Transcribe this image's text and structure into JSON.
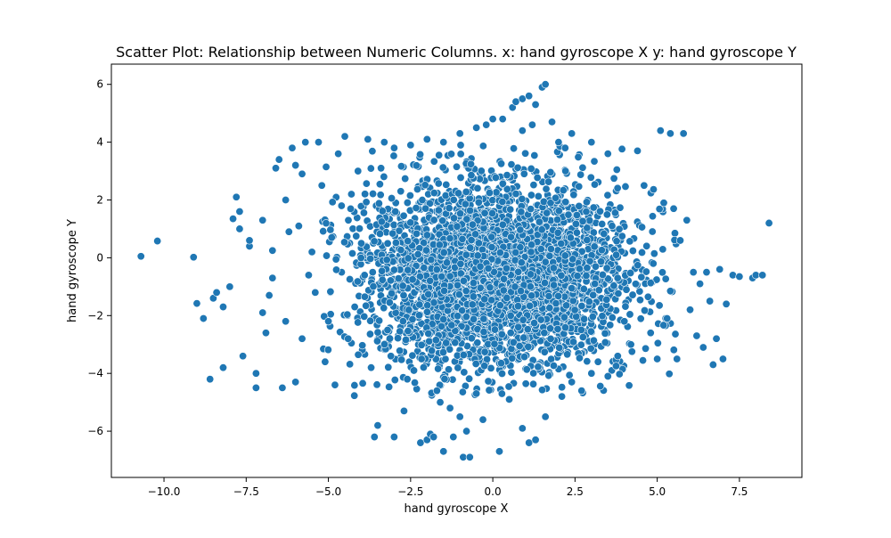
{
  "chart_data": {
    "type": "scatter",
    "title": "Scatter Plot: Relationship between Numeric Columns. x: hand gyroscope X y: hand gyroscope Y",
    "xlabel": "hand gyroscope X",
    "ylabel": "hand gyroscope Y",
    "xlim": [
      -11.6,
      9.4
    ],
    "ylim": [
      -7.6,
      6.7
    ],
    "xticks": [
      -10.0,
      -7.5,
      -5.0,
      -2.5,
      0.0,
      2.5,
      5.0,
      7.5
    ],
    "xtick_labels": [
      "−10.0",
      "−7.5",
      "−5.0",
      "−2.5",
      "0.0",
      "2.5",
      "5.0",
      "7.5"
    ],
    "yticks": [
      -6,
      -4,
      -2,
      0,
      2,
      4,
      6
    ],
    "ytick_labels": [
      "−6",
      "−4",
      "−2",
      "0",
      "2",
      "4",
      "6"
    ],
    "grid": false,
    "marker_color": "#1f77b4",
    "marker_edge": "#ffffff",
    "points": [
      [
        -10.7,
        0.05
      ],
      [
        -10.2,
        0.58
      ],
      [
        -9.1,
        0.02
      ],
      [
        -9.0,
        -1.58
      ],
      [
        -8.8,
        -2.1
      ],
      [
        -8.6,
        -4.2
      ],
      [
        -8.5,
        -1.4
      ],
      [
        -8.4,
        -1.2
      ],
      [
        -8.2,
        -1.7
      ],
      [
        -8.2,
        -3.8
      ],
      [
        -8.0,
        -1.0
      ],
      [
        -7.9,
        1.35
      ],
      [
        -7.8,
        2.1
      ],
      [
        -7.7,
        1.6
      ],
      [
        -7.7,
        1.0
      ],
      [
        -7.6,
        -3.4
      ],
      [
        -7.4,
        0.4
      ],
      [
        -7.4,
        0.6
      ],
      [
        -7.2,
        -4.0
      ],
      [
        -7.2,
        -4.5
      ],
      [
        -7.0,
        1.3
      ],
      [
        -7.0,
        -1.9
      ],
      [
        -6.9,
        -2.6
      ],
      [
        -6.8,
        -1.3
      ],
      [
        -6.7,
        0.25
      ],
      [
        -6.7,
        -0.7
      ],
      [
        -6.6,
        3.1
      ],
      [
        -6.5,
        3.4
      ],
      [
        -6.4,
        -4.5
      ],
      [
        -6.3,
        -2.2
      ],
      [
        -6.3,
        2.0
      ],
      [
        -6.2,
        0.9
      ],
      [
        -6.1,
        3.8
      ],
      [
        -6.0,
        -4.3
      ],
      [
        -6.0,
        3.2
      ],
      [
        -5.9,
        1.1
      ],
      [
        -5.8,
        -2.8
      ],
      [
        -5.8,
        2.9
      ],
      [
        -5.7,
        4.0
      ],
      [
        -5.6,
        -0.6
      ],
      [
        -5.5,
        0.2
      ],
      [
        -5.4,
        -1.2
      ],
      [
        -5.3,
        4.0
      ],
      [
        -5.2,
        2.5
      ],
      [
        -5.1,
        -3.6
      ],
      [
        -5.0,
        -2.2
      ],
      [
        -4.9,
        0.7
      ],
      [
        -4.8,
        -4.4
      ],
      [
        -4.7,
        3.6
      ],
      [
        -4.6,
        1.8
      ],
      [
        -4.5,
        4.2
      ],
      [
        -4.4,
        -2.8
      ],
      [
        -4.3,
        2.2
      ],
      [
        -4.2,
        -1.7
      ],
      [
        -4.1,
        3.0
      ],
      [
        -4.0,
        0.5
      ],
      [
        -3.9,
        -0.6
      ],
      [
        -3.8,
        4.1
      ],
      [
        -3.7,
        -3.8
      ],
      [
        -3.6,
        -6.2
      ],
      [
        -3.5,
        -5.8
      ],
      [
        -3.4,
        3.1
      ],
      [
        -3.3,
        4.0
      ],
      [
        -3.2,
        -2.5
      ],
      [
        -3.1,
        -3.4
      ],
      [
        -3.0,
        -6.2
      ],
      [
        -2.8,
        2.3
      ],
      [
        -2.7,
        -5.3
      ],
      [
        -2.6,
        -4.2
      ],
      [
        -2.4,
        -3.9
      ],
      [
        -2.2,
        -6.4
      ],
      [
        -2.0,
        -6.3
      ],
      [
        -1.9,
        -6.1
      ],
      [
        -1.8,
        -6.2
      ],
      [
        -1.7,
        -4.6
      ],
      [
        -1.6,
        -5.0
      ],
      [
        -1.5,
        -6.7
      ],
      [
        -1.3,
        -5.2
      ],
      [
        -1.2,
        -6.2
      ],
      [
        -1.0,
        -5.5
      ],
      [
        -0.9,
        -6.9
      ],
      [
        -0.8,
        -6.0
      ],
      [
        -0.7,
        -6.9
      ],
      [
        -0.5,
        -4.7
      ],
      [
        -0.3,
        -5.6
      ],
      [
        0.2,
        -6.7
      ],
      [
        0.5,
        -4.9
      ],
      [
        0.9,
        -5.9
      ],
      [
        1.1,
        -6.4
      ],
      [
        1.3,
        -6.3
      ],
      [
        1.6,
        -5.5
      ],
      [
        2.1,
        -4.8
      ],
      [
        2.4,
        -4.3
      ],
      [
        2.7,
        -4.6
      ],
      [
        3.0,
        -4.0
      ],
      [
        3.2,
        -3.6
      ],
      [
        3.5,
        -4.1
      ],
      [
        3.8,
        -3.4
      ],
      [
        4.0,
        -2.2
      ],
      [
        4.2,
        -3.0
      ],
      [
        4.4,
        3.7
      ],
      [
        4.6,
        2.5
      ],
      [
        4.8,
        -2.6
      ],
      [
        5.0,
        -3.5
      ],
      [
        5.1,
        4.4
      ],
      [
        5.2,
        1.9
      ],
      [
        5.3,
        -2.1
      ],
      [
        5.4,
        4.3
      ],
      [
        5.5,
        1.7
      ],
      [
        5.6,
        -3.5
      ],
      [
        5.7,
        0.6
      ],
      [
        5.8,
        4.3
      ],
      [
        5.9,
        1.3
      ],
      [
        6.0,
        -1.8
      ],
      [
        6.1,
        -0.5
      ],
      [
        6.2,
        -2.7
      ],
      [
        6.3,
        -0.9
      ],
      [
        6.4,
        -3.1
      ],
      [
        6.5,
        -0.5
      ],
      [
        6.6,
        -1.5
      ],
      [
        6.7,
        -3.7
      ],
      [
        6.8,
        -2.8
      ],
      [
        6.9,
        -0.4
      ],
      [
        7.0,
        -3.5
      ],
      [
        7.1,
        -1.6
      ],
      [
        7.3,
        -0.6
      ],
      [
        7.5,
        -0.65
      ],
      [
        7.9,
        -0.7
      ],
      [
        8.0,
        -0.6
      ],
      [
        8.2,
        -0.6
      ],
      [
        8.4,
        1.2
      ],
      [
        -0.5,
        4.5
      ],
      [
        0.0,
        4.8
      ],
      [
        0.3,
        4.8
      ],
      [
        0.6,
        5.2
      ],
      [
        0.7,
        5.4
      ],
      [
        0.9,
        5.5
      ],
      [
        1.1,
        5.6
      ],
      [
        1.3,
        5.3
      ],
      [
        1.5,
        5.9
      ],
      [
        1.6,
        6.0
      ],
      [
        1.8,
        4.7
      ],
      [
        2.0,
        4.0
      ],
      [
        2.4,
        4.3
      ],
      [
        3.0,
        4.0
      ],
      [
        3.5,
        3.6
      ],
      [
        -1.0,
        4.3
      ],
      [
        -1.5,
        4.0
      ],
      [
        -2.0,
        4.1
      ],
      [
        -2.5,
        3.9
      ],
      [
        -3.0,
        3.8
      ],
      [
        -0.2,
        4.6
      ],
      [
        0.9,
        4.4
      ],
      [
        1.2,
        4.6
      ],
      [
        2.2,
        3.8
      ]
    ]
  }
}
